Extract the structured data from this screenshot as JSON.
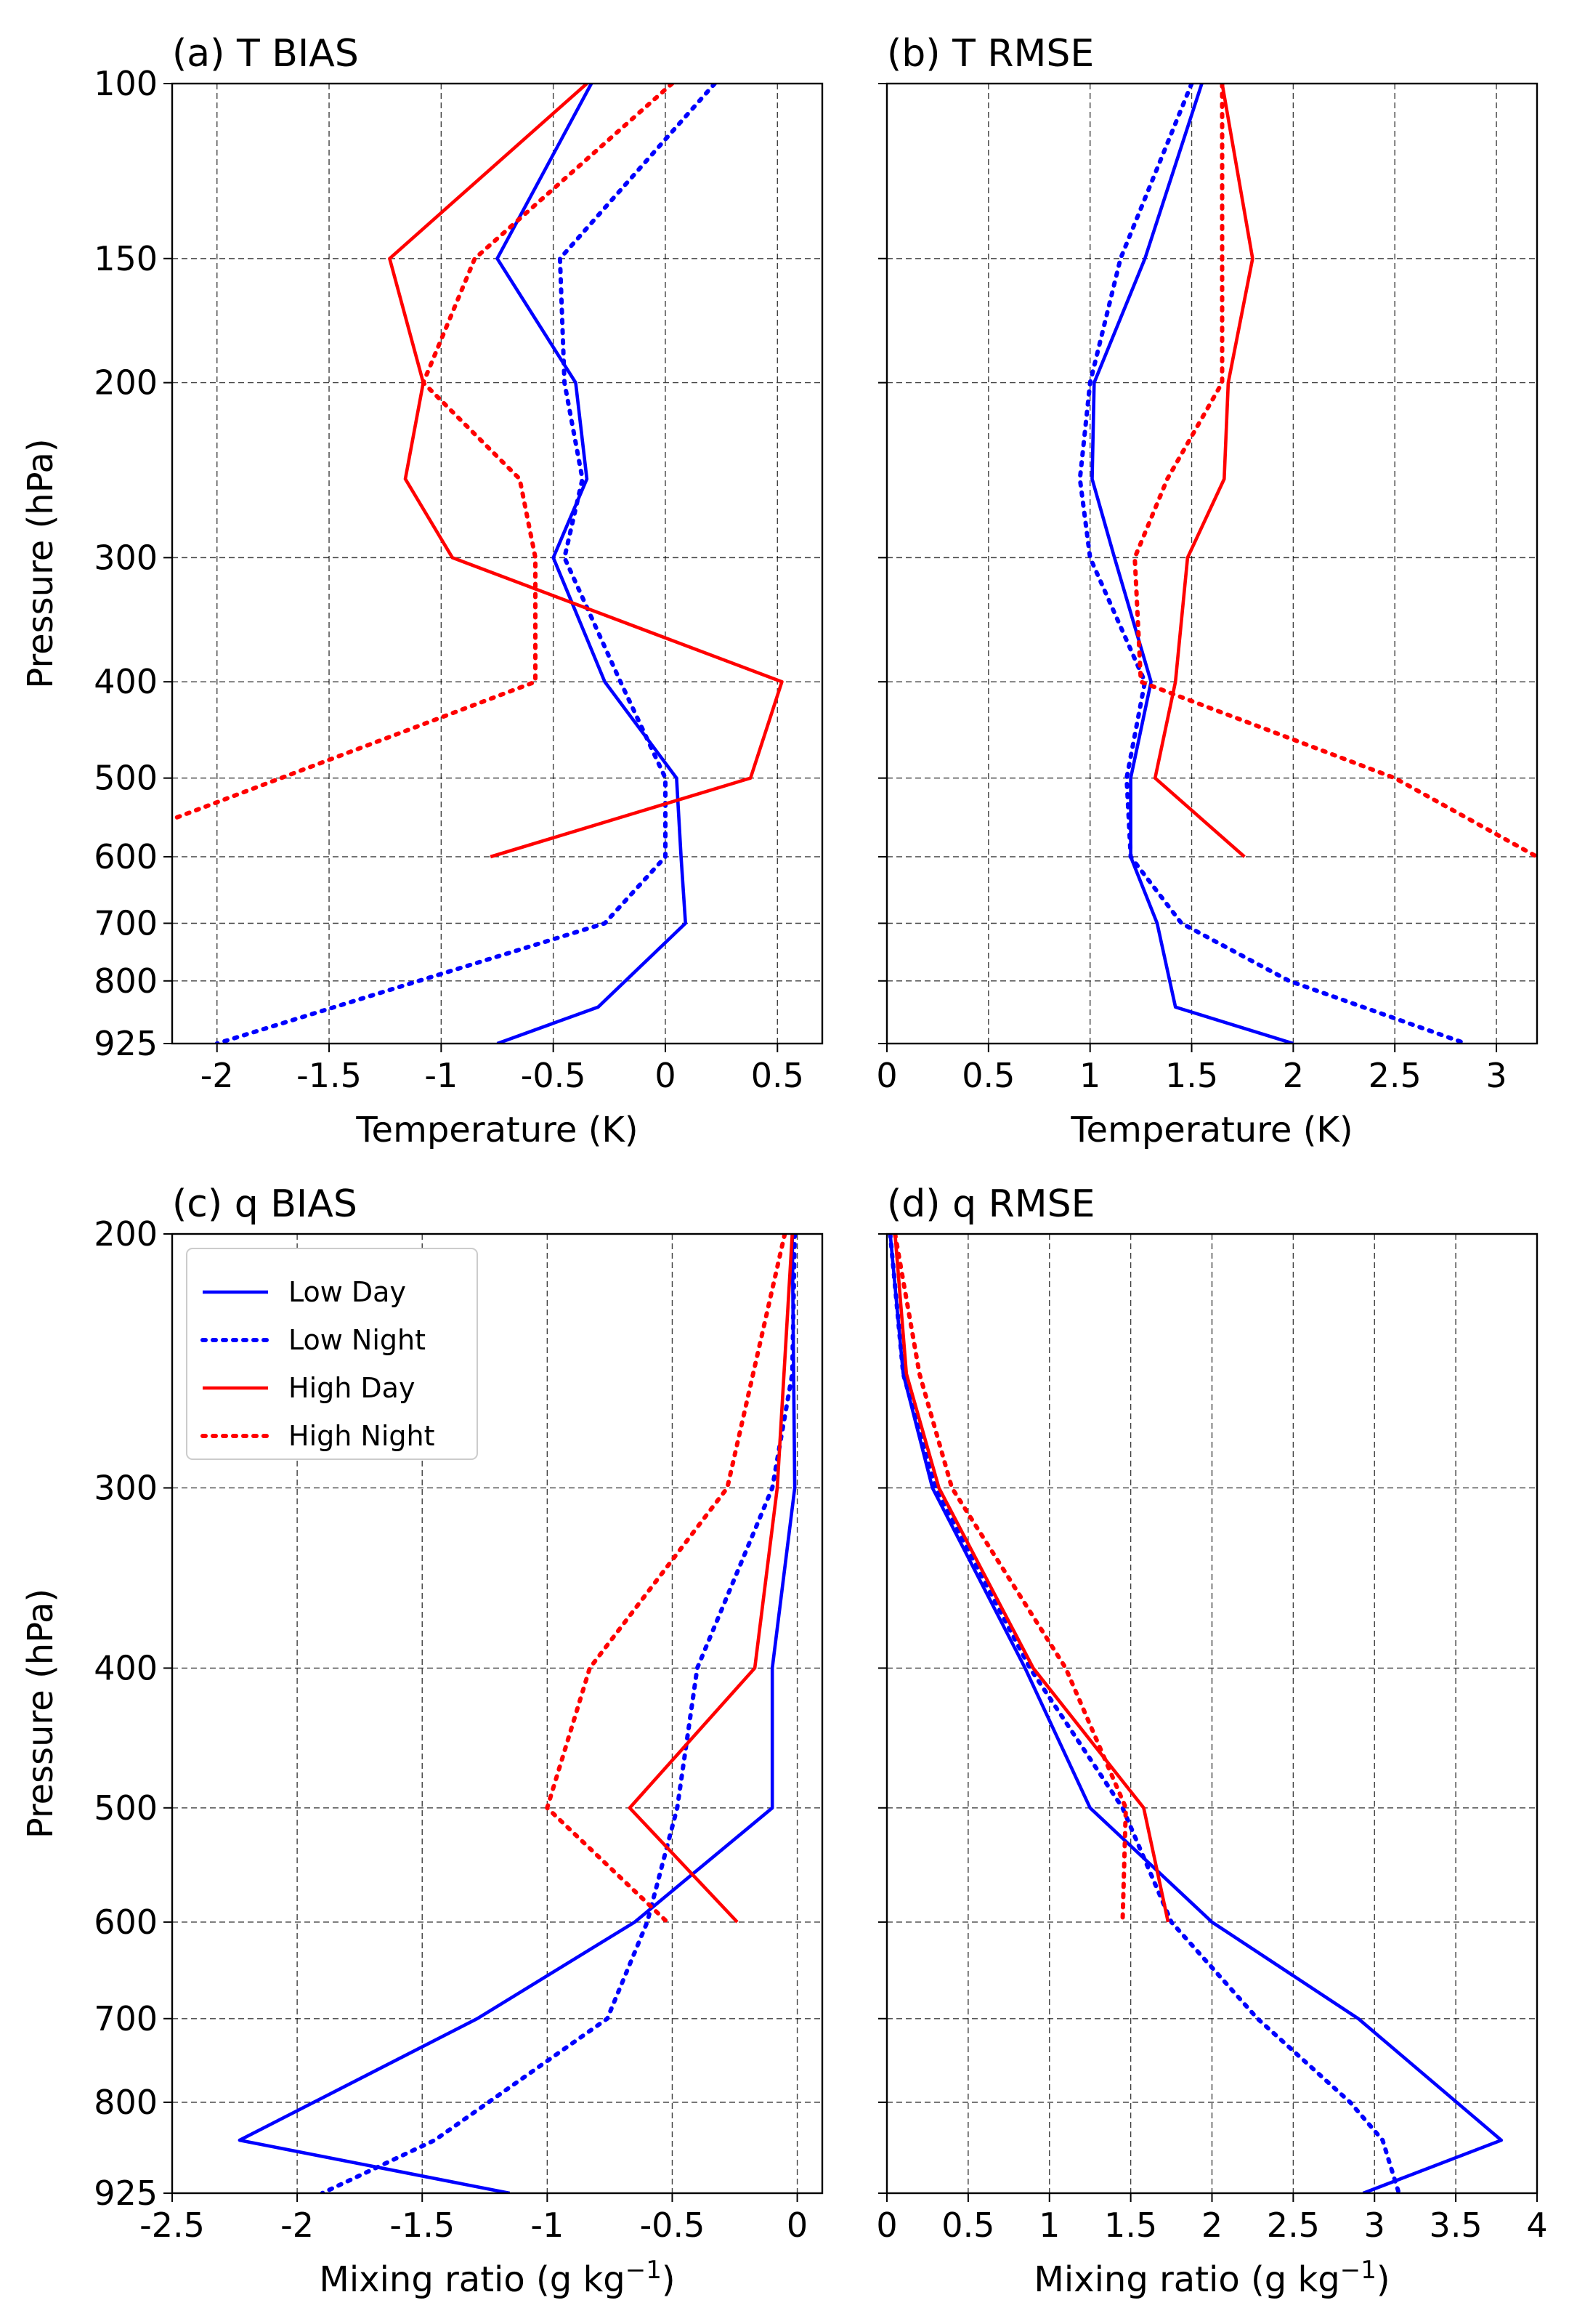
{
  "chart_data": [
    {
      "id": "a",
      "type": "line",
      "title": "(a) T BIAS",
      "xlabel": "Temperature (K)",
      "ylabel": "Pressure (hPa)",
      "xlim": [
        -2.2,
        0.7
      ],
      "xticks": [
        -2,
        -1.5,
        -1,
        -0.5,
        0,
        0.5
      ],
      "xtick_labels": [
        "-2",
        "-1.5",
        "-1",
        "-0.5",
        "0",
        "0.5"
      ],
      "ylim": [
        100,
        925
      ],
      "yticks": [
        100,
        150,
        200,
        300,
        400,
        500,
        600,
        700,
        800,
        925
      ],
      "ytick_labels": [
        "100",
        "150",
        "200",
        "300",
        "400",
        "500",
        "600",
        "700",
        "800",
        "925"
      ],
      "yscale": "log-inverted",
      "grid": true,
      "series": [
        {
          "name": "Low Day",
          "style": "solid",
          "color": "#0000ff",
          "points": [
            [
              -0.33,
              100
            ],
            [
              -0.75,
              150
            ],
            [
              -0.4,
              200
            ],
            [
              -0.35,
              250
            ],
            [
              -0.5,
              300
            ],
            [
              -0.27,
              400
            ],
            [
              0.05,
              500
            ],
            [
              0.07,
              600
            ],
            [
              0.09,
              700
            ],
            [
              -0.3,
              850
            ],
            [
              -0.75,
              925
            ]
          ]
        },
        {
          "name": "Low Night",
          "style": "dotted",
          "color": "#0000ff",
          "points": [
            [
              0.22,
              100
            ],
            [
              -0.47,
              150
            ],
            [
              -0.45,
              200
            ],
            [
              -0.37,
              250
            ],
            [
              -0.45,
              300
            ],
            [
              -0.2,
              400
            ],
            [
              0,
              500
            ],
            [
              0,
              600
            ],
            [
              -0.27,
              700
            ],
            [
              -1.1,
              800
            ],
            [
              -2,
              925
            ]
          ]
        },
        {
          "name": "High Day",
          "style": "solid",
          "color": "#ff0000",
          "points": [
            [
              -0.35,
              100
            ],
            [
              -1.23,
              150
            ],
            [
              -1.08,
              200
            ],
            [
              -1.16,
              250
            ],
            [
              -0.95,
              300
            ],
            [
              0.52,
              400
            ],
            [
              0.38,
              500
            ],
            [
              -0.78,
              600
            ]
          ]
        },
        {
          "name": "High Night",
          "style": "dotted",
          "color": "#ff0000",
          "points": [
            [
              0.03,
              100
            ],
            [
              -0.85,
              150
            ],
            [
              -1.08,
              200
            ],
            [
              -0.65,
              250
            ],
            [
              -0.58,
              300
            ],
            [
              -0.58,
              400
            ],
            [
              -2.2,
              550
            ]
          ]
        }
      ]
    },
    {
      "id": "b",
      "type": "line",
      "title": "(b) T RMSE",
      "xlabel": "Temperature (K)",
      "ylabel": "",
      "xlim": [
        0,
        3.2
      ],
      "xticks": [
        0,
        0.5,
        1,
        1.5,
        2,
        2.5,
        3
      ],
      "xtick_labels": [
        "0",
        "0.5",
        "1",
        "1.5",
        "2",
        "2.5",
        "3"
      ],
      "ylim": [
        100,
        925
      ],
      "yticks": [
        100,
        150,
        200,
        300,
        400,
        500,
        600,
        700,
        800,
        925
      ],
      "ytick_labels": [],
      "yscale": "log-inverted",
      "grid": true,
      "series": [
        {
          "name": "Low Day",
          "style": "solid",
          "color": "#0000ff",
          "points": [
            [
              1.55,
              100
            ],
            [
              1.27,
              150
            ],
            [
              1.02,
              200
            ],
            [
              1.01,
              250
            ],
            [
              1.12,
              300
            ],
            [
              1.3,
              400
            ],
            [
              1.2,
              500
            ],
            [
              1.2,
              600
            ],
            [
              1.33,
              700
            ],
            [
              1.42,
              850
            ],
            [
              2,
              925
            ]
          ]
        },
        {
          "name": "Low Night",
          "style": "dotted",
          "color": "#0000ff",
          "points": [
            [
              1.5,
              100
            ],
            [
              1.15,
              150
            ],
            [
              1.0,
              200
            ],
            [
              0.95,
              250
            ],
            [
              1.0,
              300
            ],
            [
              1.27,
              400
            ],
            [
              1.18,
              500
            ],
            [
              1.2,
              600
            ],
            [
              1.45,
              700
            ],
            [
              1.98,
              800
            ],
            [
              2.85,
              925
            ]
          ]
        },
        {
          "name": "High Day",
          "style": "solid",
          "color": "#ff0000",
          "points": [
            [
              1.65,
              100
            ],
            [
              1.8,
              150
            ],
            [
              1.68,
              200
            ],
            [
              1.66,
              250
            ],
            [
              1.48,
              300
            ],
            [
              1.42,
              400
            ],
            [
              1.32,
              500
            ],
            [
              1.76,
              600
            ]
          ]
        },
        {
          "name": "High Night",
          "style": "dotted",
          "color": "#ff0000",
          "points": [
            [
              1.65,
              100
            ],
            [
              1.65,
              150
            ],
            [
              1.65,
              200
            ],
            [
              1.38,
              250
            ],
            [
              1.22,
              300
            ],
            [
              1.25,
              400
            ],
            [
              2.5,
              500
            ],
            [
              3.2,
              600
            ]
          ]
        }
      ]
    },
    {
      "id": "c",
      "type": "line",
      "title": "(c) q BIAS",
      "xlabel": "Mixing ratio (g kg",
      "xlabel_sup": "−1",
      "xlabel_end": ")",
      "ylabel": "Pressure (hPa)",
      "xlim": [
        -2.5,
        0.1
      ],
      "xticks": [
        -2.5,
        -2,
        -1.5,
        -1,
        -0.5,
        0
      ],
      "xtick_labels": [
        "-2.5",
        "-2",
        "-1.5",
        "-1",
        "-0.5",
        "0"
      ],
      "ylim": [
        200,
        925
      ],
      "yticks": [
        200,
        300,
        400,
        500,
        600,
        700,
        800,
        925
      ],
      "ytick_labels": [
        "200",
        "300",
        "400",
        "500",
        "600",
        "700",
        "800",
        "925"
      ],
      "yscale": "log-inverted",
      "grid": true,
      "legend": {
        "placement": "upper-left",
        "entries": [
          {
            "label": "Low Day",
            "style": "solid",
            "color": "#0000ff"
          },
          {
            "label": "Low Night",
            "style": "dotted",
            "color": "#0000ff"
          },
          {
            "label": "High Day",
            "style": "solid",
            "color": "#ff0000"
          },
          {
            "label": "High Night",
            "style": "dotted",
            "color": "#ff0000"
          }
        ]
      },
      "series": [
        {
          "name": "Low Day",
          "style": "solid",
          "color": "#0000ff",
          "points": [
            [
              -0.02,
              200
            ],
            [
              -0.01,
              300
            ],
            [
              -0.1,
              400
            ],
            [
              -0.1,
              500
            ],
            [
              -0.65,
              600
            ],
            [
              -1.28,
              700
            ],
            [
              -2.23,
              850
            ],
            [
              -1.15,
              925
            ]
          ]
        },
        {
          "name": "Low Night",
          "style": "dotted",
          "color": "#0000ff",
          "points": [
            [
              -0.01,
              200
            ],
            [
              -0.02,
              250
            ],
            [
              -0.1,
              300
            ],
            [
              -0.4,
              400
            ],
            [
              -0.48,
              500
            ],
            [
              -0.6,
              600
            ],
            [
              -0.76,
              700
            ],
            [
              -1.45,
              850
            ],
            [
              -1.9,
              925
            ]
          ]
        },
        {
          "name": "High Day",
          "style": "solid",
          "color": "#ff0000",
          "points": [
            [
              -0.02,
              200
            ],
            [
              -0.08,
              300
            ],
            [
              -0.17,
              400
            ],
            [
              -0.67,
              500
            ],
            [
              -0.24,
              600
            ]
          ]
        },
        {
          "name": "High Night",
          "style": "dotted",
          "color": "#ff0000",
          "points": [
            [
              -0.05,
              200
            ],
            [
              -0.28,
              300
            ],
            [
              -0.83,
              400
            ],
            [
              -1.0,
              500
            ],
            [
              -0.52,
              600
            ]
          ]
        }
      ]
    },
    {
      "id": "d",
      "type": "line",
      "title": "(d) q RMSE",
      "xlabel": "Mixing ratio (g kg",
      "xlabel_sup": "−1",
      "xlabel_end": ")",
      "ylabel": "",
      "xlim": [
        0,
        4
      ],
      "xticks": [
        0,
        0.5,
        1,
        1.5,
        2,
        2.5,
        3,
        3.5,
        4
      ],
      "xtick_labels": [
        "0",
        "0.5",
        "1",
        "1.5",
        "2",
        "2.5",
        "3",
        "3.5",
        "4"
      ],
      "ylim": [
        200,
        925
      ],
      "yticks": [
        200,
        300,
        400,
        500,
        600,
        700,
        800,
        925
      ],
      "ytick_labels": [],
      "yscale": "log-inverted",
      "grid": true,
      "series": [
        {
          "name": "Low Day",
          "style": "solid",
          "color": "#0000ff",
          "points": [
            [
              0.02,
              200
            ],
            [
              0.1,
              250
            ],
            [
              0.28,
              300
            ],
            [
              0.85,
              400
            ],
            [
              1.25,
              500
            ],
            [
              2.0,
              600
            ],
            [
              2.9,
              700
            ],
            [
              3.78,
              850
            ],
            [
              2.93,
              925
            ]
          ]
        },
        {
          "name": "Low Night",
          "style": "dotted",
          "color": "#0000ff",
          "points": [
            [
              0.02,
              200
            ],
            [
              0.1,
              250
            ],
            [
              0.3,
              300
            ],
            [
              0.88,
              400
            ],
            [
              1.45,
              500
            ],
            [
              1.75,
              600
            ],
            [
              2.28,
              700
            ],
            [
              2.85,
              800
            ],
            [
              3.05,
              850
            ],
            [
              3.15,
              925
            ]
          ]
        },
        {
          "name": "High Day",
          "style": "solid",
          "color": "#ff0000",
          "points": [
            [
              0.05,
              200
            ],
            [
              0.12,
              250
            ],
            [
              0.32,
              300
            ],
            [
              0.9,
              400
            ],
            [
              1.58,
              500
            ],
            [
              1.73,
              600
            ]
          ]
        },
        {
          "name": "High Night",
          "style": "dotted",
          "color": "#ff0000",
          "points": [
            [
              0.05,
              200
            ],
            [
              0.2,
              250
            ],
            [
              0.4,
              300
            ],
            [
              1.1,
              400
            ],
            [
              1.47,
              500
            ],
            [
              1.45,
              600
            ]
          ]
        }
      ]
    }
  ]
}
